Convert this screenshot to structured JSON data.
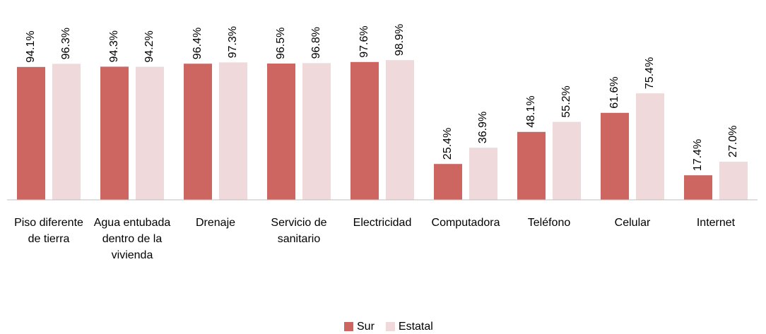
{
  "chart_data": {
    "type": "bar",
    "categories": [
      "Piso diferente de tierra",
      "Agua entubada dentro de la vivienda",
      "Drenaje",
      "Servicio de sanitario",
      "Electricidad",
      "Computadora",
      "Teléfono",
      "Celular",
      "Internet"
    ],
    "series": [
      {
        "name": "Sur",
        "color": "#cd6660",
        "values": [
          94.1,
          94.3,
          96.4,
          96.5,
          97.6,
          25.4,
          48.1,
          61.6,
          17.4
        ],
        "value_labels": [
          "94.1%",
          "94.3%",
          "96.4%",
          "96.5%",
          "97.6%",
          "25.4%",
          "48.1%",
          "61.6%",
          "17.4%"
        ]
      },
      {
        "name": "Estatal",
        "color": "#efd9da",
        "values": [
          96.3,
          94.2,
          97.3,
          96.8,
          98.9,
          36.9,
          55.2,
          75.4,
          27.0
        ],
        "value_labels": [
          "96.3%",
          "94.2%",
          "97.3%",
          "96.8%",
          "98.9%",
          "36.9%",
          "55.2%",
          "75.4%",
          "27.0%"
        ]
      }
    ],
    "legend": "bottom"
  }
}
